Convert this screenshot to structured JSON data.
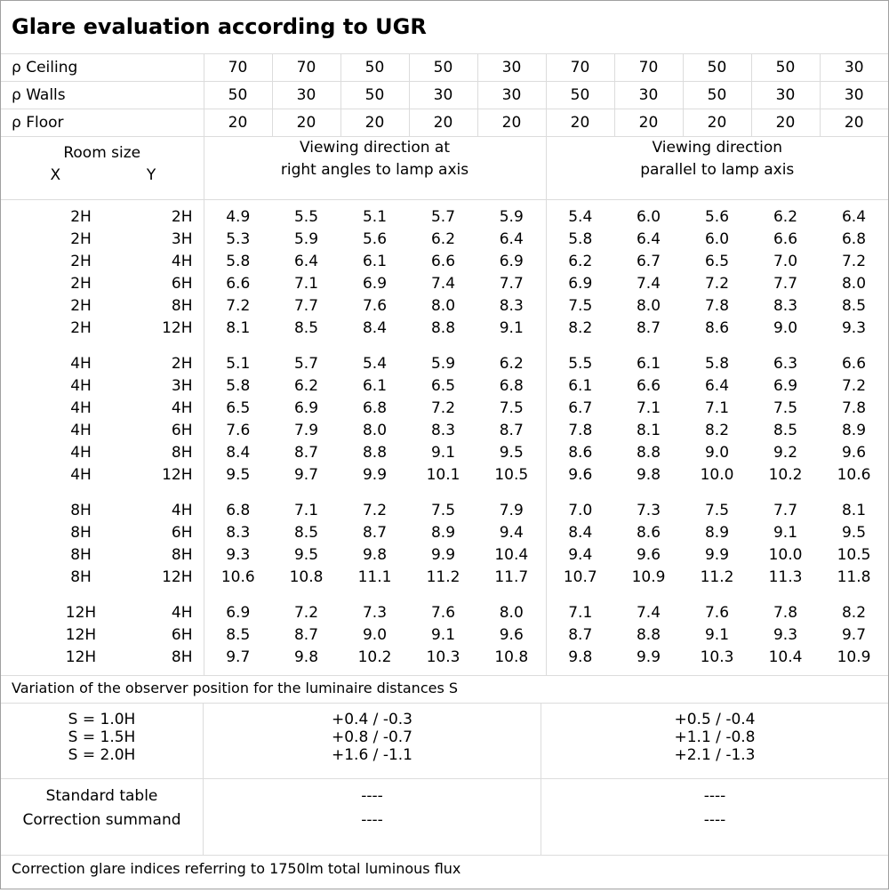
{
  "title": "Glare evaluation according to UGR",
  "reflectances": [
    {
      "label": "ρ Ceiling",
      "values": [
        "70",
        "70",
        "50",
        "50",
        "30",
        "70",
        "70",
        "50",
        "50",
        "30"
      ]
    },
    {
      "label": "ρ Walls",
      "values": [
        "50",
        "30",
        "50",
        "30",
        "30",
        "50",
        "30",
        "50",
        "30",
        "30"
      ]
    },
    {
      "label": "ρ Floor",
      "values": [
        "20",
        "20",
        "20",
        "20",
        "20",
        "20",
        "20",
        "20",
        "20",
        "20"
      ]
    }
  ],
  "header": {
    "room_size": "Room size",
    "x": "X",
    "y": "Y",
    "dir_right_line1": "Viewing direction at",
    "dir_right_line2": "right angles to lamp axis",
    "dir_parallel_line1": "Viewing direction",
    "dir_parallel_line2": "parallel to lamp axis"
  },
  "groups": [
    {
      "rows": [
        {
          "x": "2H",
          "y": "2H",
          "v": [
            "4.9",
            "5.5",
            "5.1",
            "5.7",
            "5.9",
            "5.4",
            "6.0",
            "5.6",
            "6.2",
            "6.4"
          ]
        },
        {
          "x": "2H",
          "y": "3H",
          "v": [
            "5.3",
            "5.9",
            "5.6",
            "6.2",
            "6.4",
            "5.8",
            "6.4",
            "6.0",
            "6.6",
            "6.8"
          ]
        },
        {
          "x": "2H",
          "y": "4H",
          "v": [
            "5.8",
            "6.4",
            "6.1",
            "6.6",
            "6.9",
            "6.2",
            "6.7",
            "6.5",
            "7.0",
            "7.2"
          ]
        },
        {
          "x": "2H",
          "y": "6H",
          "v": [
            "6.6",
            "7.1",
            "6.9",
            "7.4",
            "7.7",
            "6.9",
            "7.4",
            "7.2",
            "7.7",
            "8.0"
          ]
        },
        {
          "x": "2H",
          "y": "8H",
          "v": [
            "7.2",
            "7.7",
            "7.6",
            "8.0",
            "8.3",
            "7.5",
            "8.0",
            "7.8",
            "8.3",
            "8.5"
          ]
        },
        {
          "x": "2H",
          "y": "12H",
          "v": [
            "8.1",
            "8.5",
            "8.4",
            "8.8",
            "9.1",
            "8.2",
            "8.7",
            "8.6",
            "9.0",
            "9.3"
          ]
        }
      ]
    },
    {
      "rows": [
        {
          "x": "4H",
          "y": "2H",
          "v": [
            "5.1",
            "5.7",
            "5.4",
            "5.9",
            "6.2",
            "5.5",
            "6.1",
            "5.8",
            "6.3",
            "6.6"
          ]
        },
        {
          "x": "4H",
          "y": "3H",
          "v": [
            "5.8",
            "6.2",
            "6.1",
            "6.5",
            "6.8",
            "6.1",
            "6.6",
            "6.4",
            "6.9",
            "7.2"
          ]
        },
        {
          "x": "4H",
          "y": "4H",
          "v": [
            "6.5",
            "6.9",
            "6.8",
            "7.2",
            "7.5",
            "6.7",
            "7.1",
            "7.1",
            "7.5",
            "7.8"
          ]
        },
        {
          "x": "4H",
          "y": "6H",
          "v": [
            "7.6",
            "7.9",
            "8.0",
            "8.3",
            "8.7",
            "7.8",
            "8.1",
            "8.2",
            "8.5",
            "8.9"
          ]
        },
        {
          "x": "4H",
          "y": "8H",
          "v": [
            "8.4",
            "8.7",
            "8.8",
            "9.1",
            "9.5",
            "8.6",
            "8.8",
            "9.0",
            "9.2",
            "9.6"
          ]
        },
        {
          "x": "4H",
          "y": "12H",
          "v": [
            "9.5",
            "9.7",
            "9.9",
            "10.1",
            "10.5",
            "9.6",
            "9.8",
            "10.0",
            "10.2",
            "10.6"
          ]
        }
      ]
    },
    {
      "rows": [
        {
          "x": "8H",
          "y": "4H",
          "v": [
            "6.8",
            "7.1",
            "7.2",
            "7.5",
            "7.9",
            "7.0",
            "7.3",
            "7.5",
            "7.7",
            "8.1"
          ]
        },
        {
          "x": "8H",
          "y": "6H",
          "v": [
            "8.3",
            "8.5",
            "8.7",
            "8.9",
            "9.4",
            "8.4",
            "8.6",
            "8.9",
            "9.1",
            "9.5"
          ]
        },
        {
          "x": "8H",
          "y": "8H",
          "v": [
            "9.3",
            "9.5",
            "9.8",
            "9.9",
            "10.4",
            "9.4",
            "9.6",
            "9.9",
            "10.0",
            "10.5"
          ]
        },
        {
          "x": "8H",
          "y": "12H",
          "v": [
            "10.6",
            "10.8",
            "11.1",
            "11.2",
            "11.7",
            "10.7",
            "10.9",
            "11.2",
            "11.3",
            "11.8"
          ]
        }
      ]
    },
    {
      "rows": [
        {
          "x": "12H",
          "y": "4H",
          "v": [
            "6.9",
            "7.2",
            "7.3",
            "7.6",
            "8.0",
            "7.1",
            "7.4",
            "7.6",
            "7.8",
            "8.2"
          ]
        },
        {
          "x": "12H",
          "y": "6H",
          "v": [
            "8.5",
            "8.7",
            "9.0",
            "9.1",
            "9.6",
            "8.7",
            "8.8",
            "9.1",
            "9.3",
            "9.7"
          ]
        },
        {
          "x": "12H",
          "y": "8H",
          "v": [
            "9.7",
            "9.8",
            "10.2",
            "10.3",
            "10.8",
            "9.8",
            "9.9",
            "10.3",
            "10.4",
            "10.9"
          ]
        }
      ]
    }
  ],
  "variation": {
    "title": "Variation of the observer position for the luminaire distances S",
    "rows": [
      {
        "s": "S = 1.0H",
        "right": "+0.4 / -0.3",
        "parallel": "+0.5 / -0.4"
      },
      {
        "s": "S = 1.5H",
        "right": "+0.8 / -0.7",
        "parallel": "+1.1 / -0.8"
      },
      {
        "s": "S = 2.0H",
        "right": "+1.6 / -1.1",
        "parallel": "+2.1 / -1.3"
      }
    ]
  },
  "standard": {
    "labels": [
      "Standard table",
      "Correction summand"
    ],
    "right": [
      "----",
      "----"
    ],
    "parallel": [
      "----",
      "----"
    ]
  },
  "footer": "Correction glare indices referring to 1750lm total luminous flux"
}
